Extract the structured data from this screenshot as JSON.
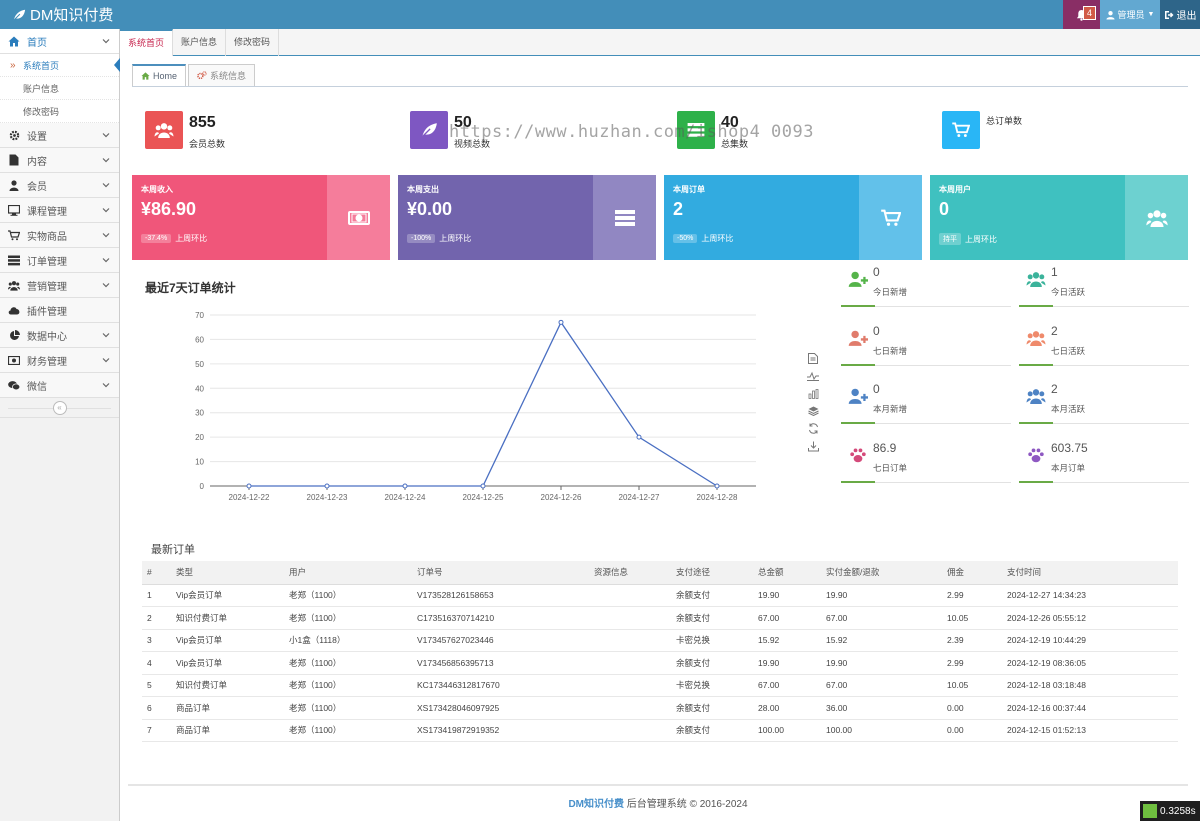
{
  "app": {
    "title": "DM知识付费"
  },
  "header": {
    "notification_count": "4",
    "admin_label": "管理员",
    "logout_label": "退出"
  },
  "sidebar": {
    "items": [
      {
        "label": "首页",
        "icon": "home-icon"
      },
      {
        "label": "设置",
        "icon": "gear-icon"
      },
      {
        "label": "内容",
        "icon": "file-icon"
      },
      {
        "label": "会员",
        "icon": "user-icon"
      },
      {
        "label": "课程管理",
        "icon": "desktop-icon"
      },
      {
        "label": "实物商品",
        "icon": "cart-icon"
      },
      {
        "label": "订单管理",
        "icon": "list-icon"
      },
      {
        "label": "营销管理",
        "icon": "users-icon"
      },
      {
        "label": "插件管理",
        "icon": "cloud-icon"
      },
      {
        "label": "数据中心",
        "icon": "pie-chart-icon"
      },
      {
        "label": "财务管理",
        "icon": "money-icon"
      },
      {
        "label": "微信",
        "icon": "wechat-icon"
      }
    ],
    "sub_items": [
      "系统首页",
      "账户信息",
      "修改密码"
    ]
  },
  "page_tabs": [
    "系统首页",
    "账户信息",
    "修改密码"
  ],
  "inner_tabs": [
    "Home",
    "系统信息"
  ],
  "stats": [
    {
      "value": "855",
      "label": "会员总数",
      "color": "#ea5455"
    },
    {
      "value": "50",
      "label": "视频总数",
      "color": "#7e57c2"
    },
    {
      "value": "40",
      "label": "总集数",
      "color": "#2eb14a"
    },
    {
      "value": "",
      "label": "总订单数",
      "color": "#29b6f6"
    }
  ],
  "cards": [
    {
      "title": "本周收入",
      "value": "¥86.90",
      "pill": "-37.4%",
      "foot": "上周环比",
      "color": "#f0567a",
      "color2": "#f57d9b"
    },
    {
      "title": "本周支出",
      "value": "¥0.00",
      "pill": "-100%",
      "foot": "上周环比",
      "color": "#7264ad",
      "color2": "#9187c2"
    },
    {
      "title": "本周订单",
      "value": "2",
      "pill": "-50%",
      "foot": "上周环比",
      "color": "#32abe0",
      "color2": "#62c1ea"
    },
    {
      "title": "本周用户",
      "value": "0",
      "pill": "持平",
      "foot": "上周环比",
      "color": "#3fc1c0",
      "color2": "#6dd1d0"
    }
  ],
  "chart_data": {
    "type": "line",
    "title": "最近7天订单统计",
    "categories": [
      "2024-12-22",
      "2024-12-23",
      "2024-12-24",
      "2024-12-25",
      "2024-12-26",
      "2024-12-27",
      "2024-12-28"
    ],
    "values": [
      0,
      0,
      0,
      0,
      67,
      20,
      0
    ],
    "ylim": [
      0,
      70
    ],
    "yticks": [
      0,
      10,
      20,
      30,
      40,
      50,
      60,
      70
    ],
    "color": "#4a6fc2"
  },
  "mini_stats": [
    {
      "value": "0",
      "label": "今日新增",
      "icon": "user-plus-icon",
      "color": "#55b44a"
    },
    {
      "value": "1",
      "label": "今日活跃",
      "icon": "users-icon",
      "color": "#3bb39b"
    },
    {
      "value": "0",
      "label": "七日新增",
      "icon": "user-plus-icon",
      "color": "#e07b6b"
    },
    {
      "value": "2",
      "label": "七日活跃",
      "icon": "users-icon",
      "color": "#ef8a6b"
    },
    {
      "value": "0",
      "label": "本月新增",
      "icon": "user-plus-icon",
      "color": "#4e83c4"
    },
    {
      "value": "2",
      "label": "本月活跃",
      "icon": "users-icon",
      "color": "#4e83c4"
    },
    {
      "value": "86.9",
      "label": "七日订单",
      "icon": "paw-icon",
      "color": "#d44a7a"
    },
    {
      "value": "603.75",
      "label": "本月订单",
      "icon": "paw-icon",
      "color": "#8e58c2"
    }
  ],
  "orders": {
    "title": "最新订单",
    "columns": [
      "#",
      "类型",
      "用户",
      "订单号",
      "资源信息",
      "支付途径",
      "总金额",
      "实付金额/退款",
      "佣金",
      "支付时间"
    ],
    "rows": [
      [
        "1",
        "Vip会员订单",
        "老郑（1100）",
        "V173528126158653",
        "",
        "余额支付",
        "19.90",
        "19.90",
        "2.99",
        "2024-12-27 14:34:23"
      ],
      [
        "2",
        "知识付费订单",
        "老郑（1100）",
        "C173516370714210",
        "",
        "余额支付",
        "67.00",
        "67.00",
        "10.05",
        "2024-12-26 05:55:12"
      ],
      [
        "3",
        "Vip会员订单",
        "小1盒（1118）",
        "V173457627023446",
        "",
        "卡密兑换",
        "15.92",
        "15.92",
        "2.39",
        "2024-12-19 10:44:29"
      ],
      [
        "4",
        "Vip会员订单",
        "老郑（1100）",
        "V173456856395713",
        "",
        "余额支付",
        "19.90",
        "19.90",
        "2.99",
        "2024-12-19 08:36:05"
      ],
      [
        "5",
        "知识付费订单",
        "老郑（1100）",
        "KC173446312817670",
        "",
        "卡密兑换",
        "67.00",
        "67.00",
        "10.05",
        "2024-12-18 03:18:48"
      ],
      [
        "6",
        "商品订单",
        "老郑（1100）",
        "XS173428046097925",
        "",
        "余额支付",
        "28.00",
        "36.00",
        "0.00",
        "2024-12-16 00:37:44"
      ],
      [
        "7",
        "商品订单",
        "老郑（1100）",
        "XS173419872919352",
        "",
        "余额支付",
        "100.00",
        "100.00",
        "0.00",
        "2024-12-15 01:52:13"
      ]
    ]
  },
  "footer": {
    "brand": "DM知识付费",
    "text": "后台管理系统 © 2016-2024"
  },
  "watermark": "https://www.huzhan.com/ishop4 0093",
  "timer": "0.3258s"
}
